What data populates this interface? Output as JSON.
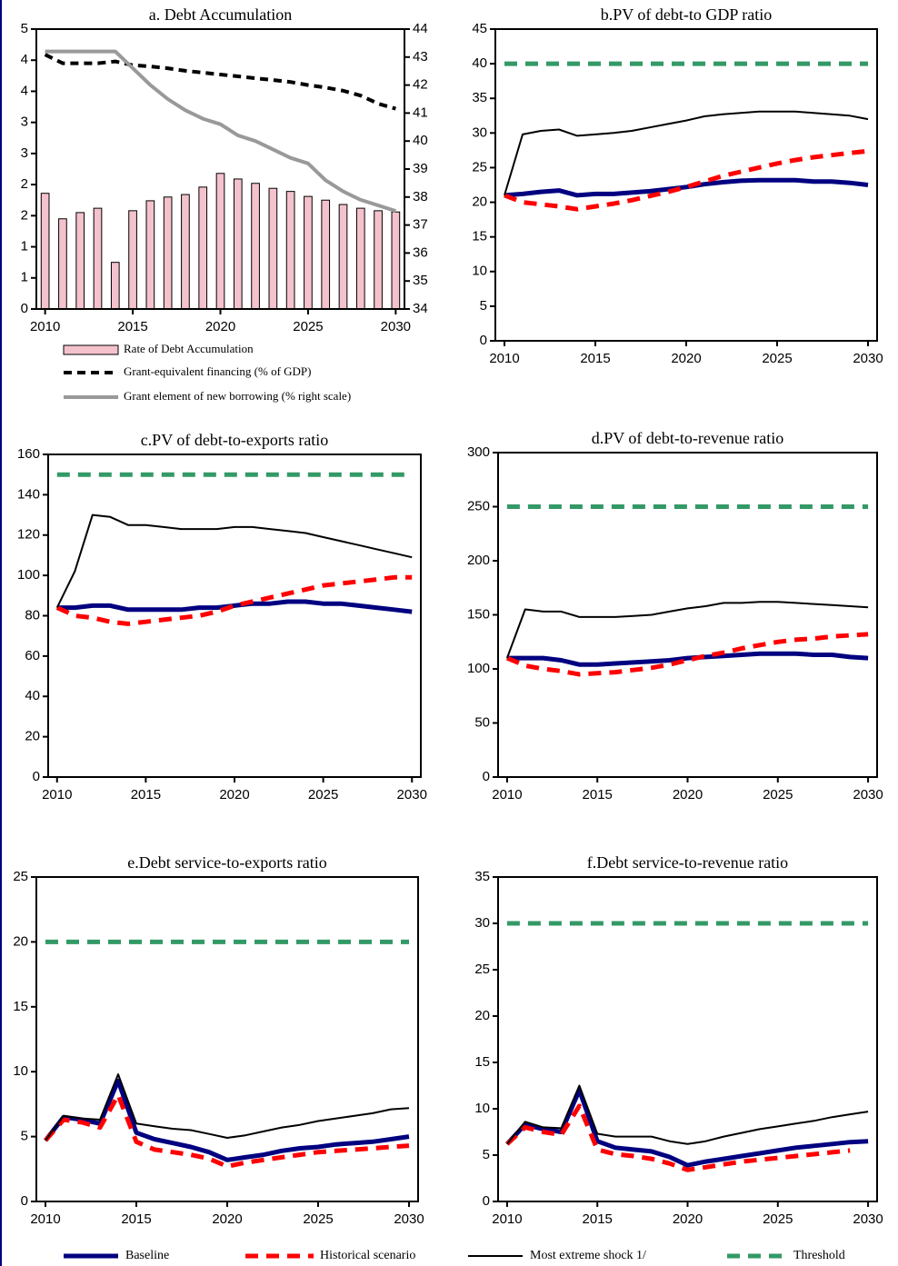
{
  "chart_data": [
    {
      "type": "bar_line",
      "title": "a. Debt Accumulation",
      "x": [
        2010,
        2011,
        2012,
        2013,
        2014,
        2015,
        2016,
        2017,
        2018,
        2019,
        2020,
        2021,
        2022,
        2023,
        2024,
        2025,
        2026,
        2027,
        2028,
        2029,
        2030
      ],
      "xlim": [
        2009.5,
        2030.5
      ],
      "xticks": [
        2010,
        2015,
        2020,
        2025,
        2030
      ],
      "ylim": [
        0,
        4.5
      ],
      "yticks": [
        0,
        {
          "value": 0.5,
          "label": "1"
        },
        1,
        {
          "value": 1.5,
          "label": "2"
        },
        2,
        {
          "value": 2.5,
          "label": "3"
        },
        3,
        {
          "value": 3.5,
          "label": "4"
        },
        4,
        {
          "value": 4.5,
          "label": "5"
        }
      ],
      "y2lim": [
        34,
        44
      ],
      "y2ticks": [
        34,
        35,
        36,
        37,
        38,
        39,
        40,
        41,
        42,
        43,
        44
      ],
      "series": [
        {
          "name": "Rate of Debt Accumulation",
          "type": "bar",
          "color": "#f4c2cc",
          "values": [
            1.86,
            1.45,
            1.55,
            1.62,
            0.75,
            1.58,
            1.74,
            1.8,
            1.84,
            1.96,
            2.18,
            2.09,
            2.02,
            1.94,
            1.89,
            1.81,
            1.75,
            1.68,
            1.62,
            1.58,
            1.56
          ]
        },
        {
          "name": "Grant-equivalent financing (% of GDP)",
          "type": "line",
          "color": "#000000",
          "dash": true,
          "width": 4,
          "values": [
            4.09,
            3.95,
            3.95,
            3.95,
            3.98,
            3.92,
            3.9,
            3.87,
            3.83,
            3.8,
            3.77,
            3.74,
            3.71,
            3.68,
            3.65,
            3.6,
            3.56,
            3.51,
            3.43,
            3.3,
            3.22
          ]
        },
        {
          "name": "Grant element of new borrowing (% right scale)",
          "type": "line",
          "axis": "y2",
          "color": "#999999",
          "width": 4,
          "values": [
            43.2,
            43.2,
            43.2,
            43.2,
            43.2,
            42.6,
            42.0,
            41.5,
            41.1,
            40.8,
            40.6,
            40.2,
            40.0,
            39.7,
            39.4,
            39.2,
            38.6,
            38.2,
            37.9,
            37.7,
            37.5
          ]
        }
      ]
    },
    {
      "type": "line",
      "title": "b.PV of debt-to GDP ratio",
      "x": [
        2010,
        2011,
        2012,
        2013,
        2014,
        2015,
        2016,
        2017,
        2018,
        2019,
        2020,
        2021,
        2022,
        2023,
        2024,
        2025,
        2026,
        2027,
        2028,
        2029,
        2030
      ],
      "xlim": [
        2009.5,
        2030.5
      ],
      "xticks": [
        2010,
        2015,
        2020,
        2025,
        2030
      ],
      "ylim": [
        0,
        45
      ],
      "yticks": [
        0,
        5,
        10,
        15,
        20,
        25,
        30,
        35,
        40,
        45
      ],
      "series": [
        {
          "name": "Baseline",
          "color": "#000080",
          "width": 5,
          "values": [
            21,
            21.2,
            21.5,
            21.7,
            21,
            21.2,
            21.2,
            21.4,
            21.6,
            21.9,
            22.2,
            22.6,
            22.9,
            23.1,
            23.2,
            23.2,
            23.2,
            23,
            23,
            22.8,
            22.5
          ]
        },
        {
          "name": "Historical scenario",
          "color": "#ff0000",
          "dash": true,
          "width": 5,
          "values": [
            21,
            20,
            19.7,
            19.4,
            19,
            19.4,
            19.8,
            20.3,
            20.9,
            21.5,
            22.2,
            23,
            23.8,
            24.4,
            25,
            25.6,
            26.1,
            26.5,
            26.8,
            27.1,
            27.4
          ]
        },
        {
          "name": "Most extreme shock  1/",
          "color": "#000000",
          "width": 2,
          "values": [
            21,
            29.8,
            30.3,
            30.5,
            29.6,
            29.8,
            30,
            30.3,
            30.8,
            31.3,
            31.8,
            32.4,
            32.7,
            32.9,
            33.1,
            33.1,
            33.1,
            32.9,
            32.7,
            32.5,
            32.0
          ]
        },
        {
          "name": "Threshold",
          "color": "#339966",
          "dash": true,
          "width": 5,
          "values": [
            40,
            40,
            40,
            40,
            40,
            40,
            40,
            40,
            40,
            40,
            40,
            40,
            40,
            40,
            40,
            40,
            40,
            40,
            40,
            40,
            40
          ]
        }
      ]
    },
    {
      "type": "line",
      "title": "c.PV of debt-to-exports ratio",
      "x": [
        2010,
        2011,
        2012,
        2013,
        2014,
        2015,
        2016,
        2017,
        2018,
        2019,
        2020,
        2021,
        2022,
        2023,
        2024,
        2025,
        2026,
        2027,
        2028,
        2029,
        2030
      ],
      "xlim": [
        2009.5,
        2030.5
      ],
      "xticks": [
        2010,
        2015,
        2020,
        2025,
        2030
      ],
      "ylim": [
        0,
        160
      ],
      "yticks": [
        0,
        20,
        40,
        60,
        80,
        100,
        120,
        140,
        160
      ],
      "series": [
        {
          "color": "#000080",
          "width": 5,
          "values": [
            84,
            84,
            85,
            85,
            83,
            83,
            83,
            83,
            84,
            84,
            85,
            86,
            86,
            87,
            87,
            86,
            86,
            85,
            84,
            83,
            82
          ]
        },
        {
          "color": "#ff0000",
          "dash": true,
          "width": 5,
          "values": [
            84,
            80,
            79,
            77,
            76,
            77,
            78,
            79,
            80,
            82,
            85,
            87,
            89,
            91,
            93,
            95,
            96,
            97,
            98,
            99,
            99
          ]
        },
        {
          "color": "#000000",
          "width": 2,
          "values": [
            84,
            102,
            130,
            129,
            125,
            125,
            124,
            123,
            123,
            123,
            124,
            124,
            123,
            122,
            121,
            119,
            117,
            115,
            113,
            111,
            109
          ]
        },
        {
          "color": "#339966",
          "dash": true,
          "width": 5,
          "values": [
            150,
            150,
            150,
            150,
            150,
            150,
            150,
            150,
            150,
            150,
            150,
            150,
            150,
            150,
            150,
            150,
            150,
            150,
            150,
            150,
            150
          ]
        }
      ]
    },
    {
      "type": "line",
      "title": "d.PV of debt-to-revenue ratio",
      "x": [
        2010,
        2011,
        2012,
        2013,
        2014,
        2015,
        2016,
        2017,
        2018,
        2019,
        2020,
        2021,
        2022,
        2023,
        2024,
        2025,
        2026,
        2027,
        2028,
        2029,
        2030
      ],
      "xlim": [
        2009.5,
        2030.5
      ],
      "xticks": [
        2010,
        2015,
        2020,
        2025,
        2030
      ],
      "ylim": [
        0,
        300
      ],
      "yticks": [
        0,
        50,
        100,
        150,
        200,
        250,
        300
      ],
      "series": [
        {
          "color": "#000080",
          "width": 5,
          "values": [
            110,
            110,
            110,
            108,
            104,
            104,
            105,
            106,
            107,
            108,
            110,
            111,
            112,
            113,
            114,
            114,
            114,
            113,
            113,
            111,
            110
          ]
        },
        {
          "color": "#ff0000",
          "dash": true,
          "width": 5,
          "values": [
            110,
            103,
            100,
            98,
            95,
            96,
            97,
            99,
            101,
            104,
            108,
            112,
            115,
            119,
            122,
            125,
            127,
            128,
            130,
            131,
            132
          ]
        },
        {
          "color": "#000000",
          "width": 2,
          "values": [
            110,
            155,
            153,
            153,
            148,
            148,
            148,
            149,
            150,
            153,
            156,
            158,
            161,
            161,
            162,
            162,
            161,
            160,
            159,
            158,
            157
          ]
        },
        {
          "color": "#339966",
          "dash": true,
          "width": 5,
          "values": [
            250,
            250,
            250,
            250,
            250,
            250,
            250,
            250,
            250,
            250,
            250,
            250,
            250,
            250,
            250,
            250,
            250,
            250,
            250,
            250,
            250
          ]
        }
      ]
    },
    {
      "type": "line",
      "title": "e.Debt service-to-exports ratio",
      "x": [
        2010,
        2011,
        2012,
        2013,
        2014,
        2015,
        2016,
        2017,
        2018,
        2019,
        2020,
        2021,
        2022,
        2023,
        2024,
        2025,
        2026,
        2027,
        2028,
        2029,
        2030
      ],
      "xlim": [
        2009.5,
        2030.5
      ],
      "xticks": [
        2010,
        2015,
        2020,
        2025,
        2030
      ],
      "ylim": [
        0,
        25
      ],
      "yticks": [
        0,
        5,
        10,
        15,
        20,
        25
      ],
      "series": [
        {
          "color": "#000080",
          "width": 5,
          "values": [
            4.7,
            6.5,
            6.3,
            6.0,
            9.3,
            5.3,
            4.8,
            4.5,
            4.2,
            3.8,
            3.2,
            3.4,
            3.6,
            3.9,
            4.1,
            4.2,
            4.4,
            4.5,
            4.6,
            4.8,
            5.0
          ]
        },
        {
          "color": "#ff0000",
          "dash": true,
          "width": 5,
          "values": [
            4.7,
            6.3,
            6.1,
            5.7,
            8.2,
            4.6,
            4.0,
            3.8,
            3.6,
            3.3,
            2.7,
            3.0,
            3.2,
            3.4,
            3.6,
            3.8,
            3.9,
            4.0,
            4.1,
            4.2,
            4.3
          ]
        },
        {
          "color": "#000000",
          "width": 2,
          "values": [
            4.7,
            6.6,
            6.4,
            6.3,
            9.8,
            6.0,
            5.8,
            5.6,
            5.5,
            5.2,
            4.9,
            5.1,
            5.4,
            5.7,
            5.9,
            6.2,
            6.4,
            6.6,
            6.8,
            7.1,
            7.2
          ]
        },
        {
          "color": "#339966",
          "dash": true,
          "width": 5,
          "values": [
            20,
            20,
            20,
            20,
            20,
            20,
            20,
            20,
            20,
            20,
            20,
            20,
            20,
            20,
            20,
            20,
            20,
            20,
            20,
            20,
            20
          ]
        }
      ]
    },
    {
      "type": "line",
      "title": "f.Debt service-to-revenue ratio",
      "x": [
        2010,
        2011,
        2012,
        2013,
        2014,
        2015,
        2016,
        2017,
        2018,
        2019,
        2020,
        2021,
        2022,
        2023,
        2024,
        2025,
        2026,
        2027,
        2028,
        2029,
        2030
      ],
      "xlim": [
        2009.5,
        2030.5
      ],
      "xticks": [
        2010,
        2015,
        2020,
        2025,
        2030
      ],
      "ylim": [
        0,
        35
      ],
      "yticks": [
        0,
        5,
        10,
        15,
        20,
        25,
        30,
        35
      ],
      "series": [
        {
          "color": "#000080",
          "width": 5,
          "values": [
            6.2,
            8.3,
            7.8,
            7.5,
            12,
            6.5,
            5.8,
            5.6,
            5.4,
            4.8,
            3.9,
            4.3,
            4.6,
            4.9,
            5.2,
            5.5,
            5.8,
            6.0,
            6.2,
            6.4,
            6.5
          ]
        },
        {
          "color": "#ff0000",
          "dash": true,
          "width": 5,
          "values": [
            6.2,
            8.0,
            7.5,
            7.2,
            10.3,
            5.6,
            5.1,
            4.9,
            4.6,
            4.1,
            3.4,
            3.7,
            4.0,
            4.3,
            4.5,
            4.7,
            4.9,
            5.1,
            5.3,
            5.5,
            null
          ]
        },
        {
          "color": "#000000",
          "width": 2,
          "values": [
            6.2,
            8.6,
            8.0,
            7.9,
            12.5,
            7.3,
            7.0,
            7.0,
            7.0,
            6.5,
            6.2,
            6.5,
            7.0,
            7.4,
            7.8,
            8.1,
            8.4,
            8.7,
            9.1,
            9.4,
            9.7
          ]
        },
        {
          "color": "#339966",
          "dash": true,
          "width": 5,
          "values": [
            30,
            30,
            30,
            30,
            30,
            30,
            30,
            30,
            30,
            30,
            30,
            30,
            30,
            30,
            30,
            30,
            30,
            30,
            30,
            30,
            30
          ]
        }
      ]
    }
  ]
}
